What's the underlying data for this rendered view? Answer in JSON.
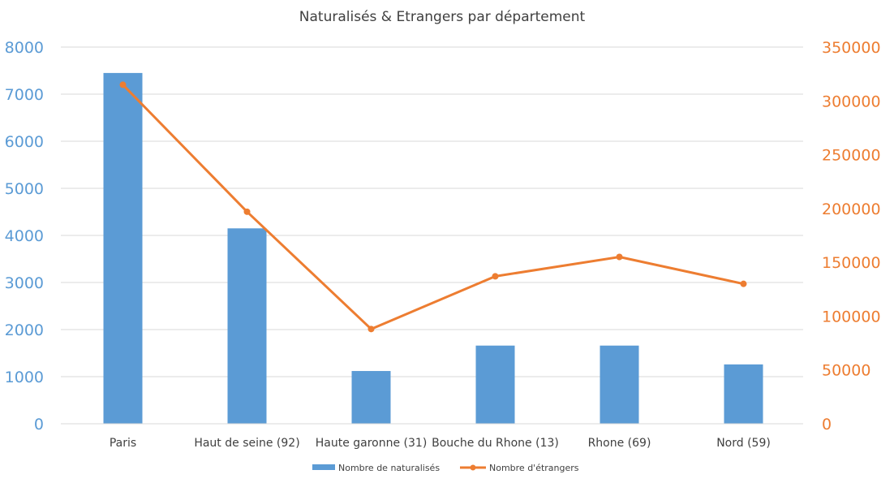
{
  "chart_data": {
    "type": "bar",
    "title": "Naturalisés & Etrangers par département",
    "categories": [
      "Paris",
      "Haut de seine (92)",
      "Haute garonne  (31)",
      "Bouche du Rhone (13)",
      "Rhone (69)",
      "Nord (59)"
    ],
    "series": [
      {
        "name": "Nombre de naturalisés",
        "type": "bar",
        "axis": "left",
        "color": "#5B9BD5",
        "values": [
          7450,
          4150,
          1120,
          1660,
          1660,
          1260
        ]
      },
      {
        "name": "Nombre d'étrangers",
        "type": "line",
        "axis": "right",
        "color": "#ED7D31",
        "values": [
          315000,
          197000,
          88000,
          137000,
          155000,
          130000
        ]
      }
    ],
    "y_left": {
      "range": [
        0,
        8000
      ],
      "ticks": [
        "0",
        "1000",
        "2000",
        "3000",
        "4000",
        "5000",
        "6000",
        "7000",
        "8000"
      ],
      "color": "#5B9BD5"
    },
    "y_right": {
      "range": [
        0,
        350000
      ],
      "ticks": [
        "0",
        "50000",
        "100000",
        "150000",
        "200000",
        "250000",
        "300000",
        "350000"
      ],
      "color": "#ED7D31"
    },
    "grid": true,
    "legend": "bottom"
  }
}
